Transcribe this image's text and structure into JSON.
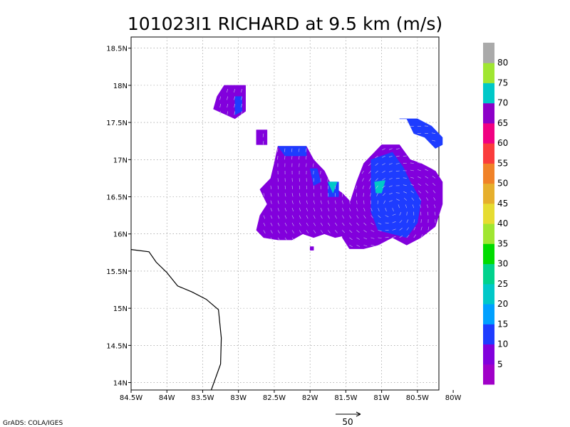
{
  "title": "101023I1 RICHARD at 9.5 km (m/s)",
  "credit": "GrADS: COLA/IGES",
  "reference_vector": {
    "label": "50"
  },
  "chart_data": {
    "type": "heatmap",
    "title": "101023I1 RICHARD at 9.5 km (m/s)",
    "xlim": [
      -84.5,
      -80.2
    ],
    "ylim": [
      13.9,
      18.65
    ],
    "x_tick_labels": [
      "84.5W",
      "84W",
      "83.5W",
      "83W",
      "82.5W",
      "82W",
      "81.5W",
      "81W",
      "80.5W",
      "80W"
    ],
    "x_tick_values": [
      -84.5,
      -84.0,
      -83.5,
      -83.0,
      -82.5,
      -82.0,
      -81.5,
      -81.0,
      -80.5,
      -80.0
    ],
    "y_tick_labels": [
      "14N",
      "14.5N",
      "15N",
      "15.5N",
      "16N",
      "16.5N",
      "17N",
      "17.5N",
      "18N",
      "18.5N"
    ],
    "y_tick_values": [
      14.0,
      14.5,
      15.0,
      15.5,
      16.0,
      16.5,
      17.0,
      17.5,
      18.0,
      18.5
    ],
    "grid": true,
    "colorbar": {
      "labels": [
        "5",
        "10",
        "15",
        "20",
        "25",
        "30",
        "35",
        "40",
        "45",
        "50",
        "55",
        "60",
        "65",
        "70",
        "75",
        "80"
      ],
      "colors": [
        "#a000c8",
        "#8200dc",
        "#1e3cff",
        "#00a0ff",
        "#00c8c8",
        "#00d28c",
        "#00dc00",
        "#a0e632",
        "#e6dc32",
        "#e6af2d",
        "#f08228",
        "#fa3c3c",
        "#f00082",
        "#8c00c8",
        "#00c8c8",
        "#a0e632",
        "#aaaaaa"
      ]
    },
    "coastline": [
      [
        -84.5,
        15.79
      ],
      [
        -84.25,
        15.76
      ],
      [
        -84.15,
        15.62
      ],
      [
        -84.0,
        15.48
      ],
      [
        -83.85,
        15.3
      ],
      [
        -83.65,
        15.22
      ],
      [
        -83.45,
        15.12
      ],
      [
        -83.28,
        14.98
      ],
      [
        -83.24,
        14.6
      ],
      [
        -83.25,
        14.25
      ],
      [
        -83.38,
        13.9
      ]
    ],
    "wind_regions": [
      {
        "level": "5-10 m/s",
        "color": "#8200dc",
        "polygon": [
          [
            -83.2,
            18.0
          ],
          [
            -82.9,
            18.0
          ],
          [
            -82.9,
            17.65
          ],
          [
            -83.05,
            17.55
          ],
          [
            -83.35,
            17.68
          ],
          [
            -83.3,
            17.85
          ]
        ]
      },
      {
        "level": "10-15 m/s",
        "color": "#1e3cff",
        "polygon": [
          [
            -83.05,
            17.85
          ],
          [
            -82.95,
            17.85
          ],
          [
            -82.95,
            17.65
          ],
          [
            -83.05,
            17.6
          ]
        ]
      },
      {
        "level": "5-10 m/s",
        "color": "#8200dc",
        "polygon": [
          [
            -82.75,
            17.4
          ],
          [
            -82.6,
            17.4
          ],
          [
            -82.6,
            17.2
          ],
          [
            -82.75,
            17.2
          ]
        ]
      },
      {
        "level": "5-10 m/s",
        "color": "#8200dc",
        "polygon": [
          [
            -82.45,
            17.18
          ],
          [
            -82.05,
            17.18
          ],
          [
            -81.95,
            17.0
          ],
          [
            -81.8,
            16.85
          ],
          [
            -81.7,
            16.65
          ],
          [
            -81.55,
            16.55
          ],
          [
            -81.45,
            16.45
          ],
          [
            -81.35,
            16.25
          ],
          [
            -81.35,
            16.05
          ],
          [
            -81.5,
            15.98
          ],
          [
            -81.65,
            15.95
          ],
          [
            -81.8,
            16.0
          ],
          [
            -81.95,
            15.95
          ],
          [
            -82.1,
            16.0
          ],
          [
            -82.25,
            15.92
          ],
          [
            -82.45,
            15.92
          ],
          [
            -82.65,
            15.95
          ],
          [
            -82.75,
            16.05
          ],
          [
            -82.7,
            16.25
          ],
          [
            -82.6,
            16.4
          ],
          [
            -82.7,
            16.6
          ],
          [
            -82.55,
            16.75
          ],
          [
            -82.5,
            16.95
          ]
        ]
      },
      {
        "level": "10-15 m/s",
        "color": "#1e3cff",
        "polygon": [
          [
            -82.45,
            17.18
          ],
          [
            -82.05,
            17.18
          ],
          [
            -82.05,
            17.05
          ],
          [
            -82.35,
            17.05
          ]
        ]
      },
      {
        "level": "10-15 m/s",
        "color": "#1e3cff",
        "polygon": [
          [
            -82.0,
            16.88
          ],
          [
            -81.9,
            16.88
          ],
          [
            -81.85,
            16.7
          ],
          [
            -81.95,
            16.65
          ]
        ]
      },
      {
        "level": "10-15 m/s",
        "color": "#1e3cff",
        "polygon": [
          [
            -81.75,
            16.7
          ],
          [
            -81.6,
            16.7
          ],
          [
            -81.6,
            16.5
          ],
          [
            -81.75,
            16.5
          ]
        ]
      },
      {
        "level": "20-25 m/s",
        "color": "#00c8c8",
        "polygon": [
          [
            -81.75,
            16.7
          ],
          [
            -81.62,
            16.7
          ],
          [
            -81.68,
            16.55
          ]
        ]
      },
      {
        "level": "5-10 m/s",
        "color": "#8200dc",
        "polygon": [
          [
            -81.25,
            16.95
          ],
          [
            -81.0,
            17.2
          ],
          [
            -80.75,
            17.2
          ],
          [
            -80.6,
            17.0
          ],
          [
            -80.45,
            16.95
          ],
          [
            -80.25,
            16.85
          ],
          [
            -80.15,
            16.7
          ],
          [
            -80.15,
            16.4
          ],
          [
            -80.25,
            16.1
          ],
          [
            -80.45,
            15.95
          ],
          [
            -80.65,
            15.85
          ],
          [
            -80.85,
            15.95
          ],
          [
            -81.05,
            15.85
          ],
          [
            -81.25,
            15.8
          ],
          [
            -81.45,
            15.8
          ],
          [
            -81.55,
            15.95
          ],
          [
            -81.55,
            16.15
          ],
          [
            -81.45,
            16.4
          ],
          [
            -81.35,
            16.7
          ]
        ]
      },
      {
        "level": "10-15 m/s",
        "color": "#1e3cff",
        "polygon": [
          [
            -81.15,
            17.0
          ],
          [
            -80.85,
            17.1
          ],
          [
            -80.7,
            16.9
          ],
          [
            -80.6,
            16.7
          ],
          [
            -80.45,
            16.45
          ],
          [
            -80.5,
            16.15
          ],
          [
            -80.65,
            15.95
          ],
          [
            -80.85,
            16.0
          ],
          [
            -81.05,
            16.05
          ],
          [
            -81.15,
            16.3
          ],
          [
            -81.15,
            16.65
          ]
        ]
      },
      {
        "level": "20-25 m/s",
        "color": "#00c8c8",
        "polygon": [
          [
            -81.1,
            16.7
          ],
          [
            -80.95,
            16.72
          ],
          [
            -81.0,
            16.55
          ],
          [
            -81.08,
            16.55
          ]
        ]
      },
      {
        "level": "10-15 m/s",
        "color": "#1e3cff",
        "polygon": [
          [
            -80.75,
            17.55
          ],
          [
            -80.65,
            17.55
          ],
          [
            -80.55,
            17.35
          ],
          [
            -80.4,
            17.3
          ],
          [
            -80.25,
            17.15
          ],
          [
            -80.15,
            17.2
          ],
          [
            -80.15,
            17.3
          ],
          [
            -80.3,
            17.45
          ],
          [
            -80.5,
            17.55
          ]
        ]
      },
      {
        "level": "5-10 m/s",
        "color": "#8200dc",
        "polygon": [
          [
            -82.0,
            15.83
          ],
          [
            -81.95,
            15.83
          ],
          [
            -81.95,
            15.78
          ],
          [
            -82.0,
            15.78
          ]
        ]
      }
    ]
  }
}
